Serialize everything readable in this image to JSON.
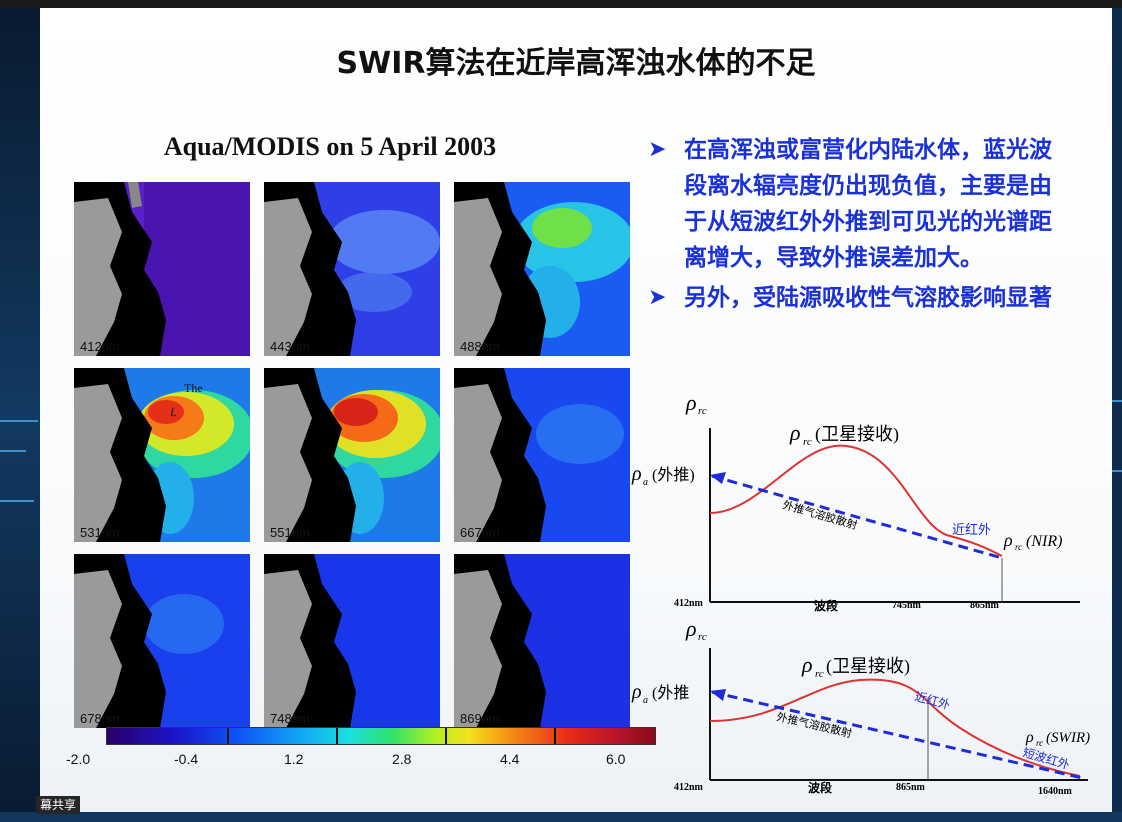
{
  "title": "SWIR算法在近岸高浑浊水体的不足",
  "share_badge": "幕共享",
  "map_title": "Aqua/MODIS on 5 April 2003",
  "panels": [
    {
      "label": "412nm"
    },
    {
      "label": "443nm"
    },
    {
      "label": "488nm"
    },
    {
      "label": "531nm"
    },
    {
      "label": "551nm"
    },
    {
      "label": "667nm"
    },
    {
      "label": "678nm"
    },
    {
      "label": "748nm"
    },
    {
      "label": "869nm"
    }
  ],
  "panel_annotation": {
    "the": "The",
    "l": "L"
  },
  "colorbar": {
    "labels": [
      "-2.0",
      "-0.4",
      "1.2",
      "2.8",
      "4.4",
      "6.0"
    ],
    "colors": [
      "#2a0067",
      "#1c12c8",
      "#0e55f5",
      "#12aaf5",
      "#19dfe0",
      "#2ee36a",
      "#b4f020",
      "#f5e21c",
      "#f58a14",
      "#e82c18",
      "#b8142a",
      "#8a0a1e"
    ]
  },
  "bullets": [
    {
      "text": "在高浑浊或富营化内陆水体，蓝光波段离水辐亮度仍出现负值，主要是由于从短波红外外推到可见光的光谱距离增大，导致外推误差加大。"
    },
    {
      "text": "另外，受陆源吸收性气溶胶影响显著"
    }
  ],
  "graph1": {
    "y_axis": "ρ",
    "y_axis_sub": "rc",
    "peak_label": "(卫星接收)",
    "rho": "ρ",
    "sub_rc": "rc",
    "sub_a": "a",
    "left_label": "(外推)",
    "aerosol_label": "外推气溶胶散射",
    "nir_label": "近红外",
    "end_label": "(NIR)",
    "x_ticks": [
      "412nm",
      "波段",
      "745nm",
      "865nm"
    ]
  },
  "graph2": {
    "y_axis": "ρ",
    "y_axis_sub": "rc",
    "peak_label": "(卫星接收)",
    "rho": "ρ",
    "sub_rc": "rc",
    "sub_a": "a",
    "left_label": "(外推",
    "aerosol_label": "外推气溶胶散射",
    "nir_label": "近红外",
    "end_label": "(SWIR)",
    "swir_label": "短波红外",
    "x_ticks": [
      "412nm",
      "波段",
      "865nm",
      "1640nm"
    ]
  }
}
